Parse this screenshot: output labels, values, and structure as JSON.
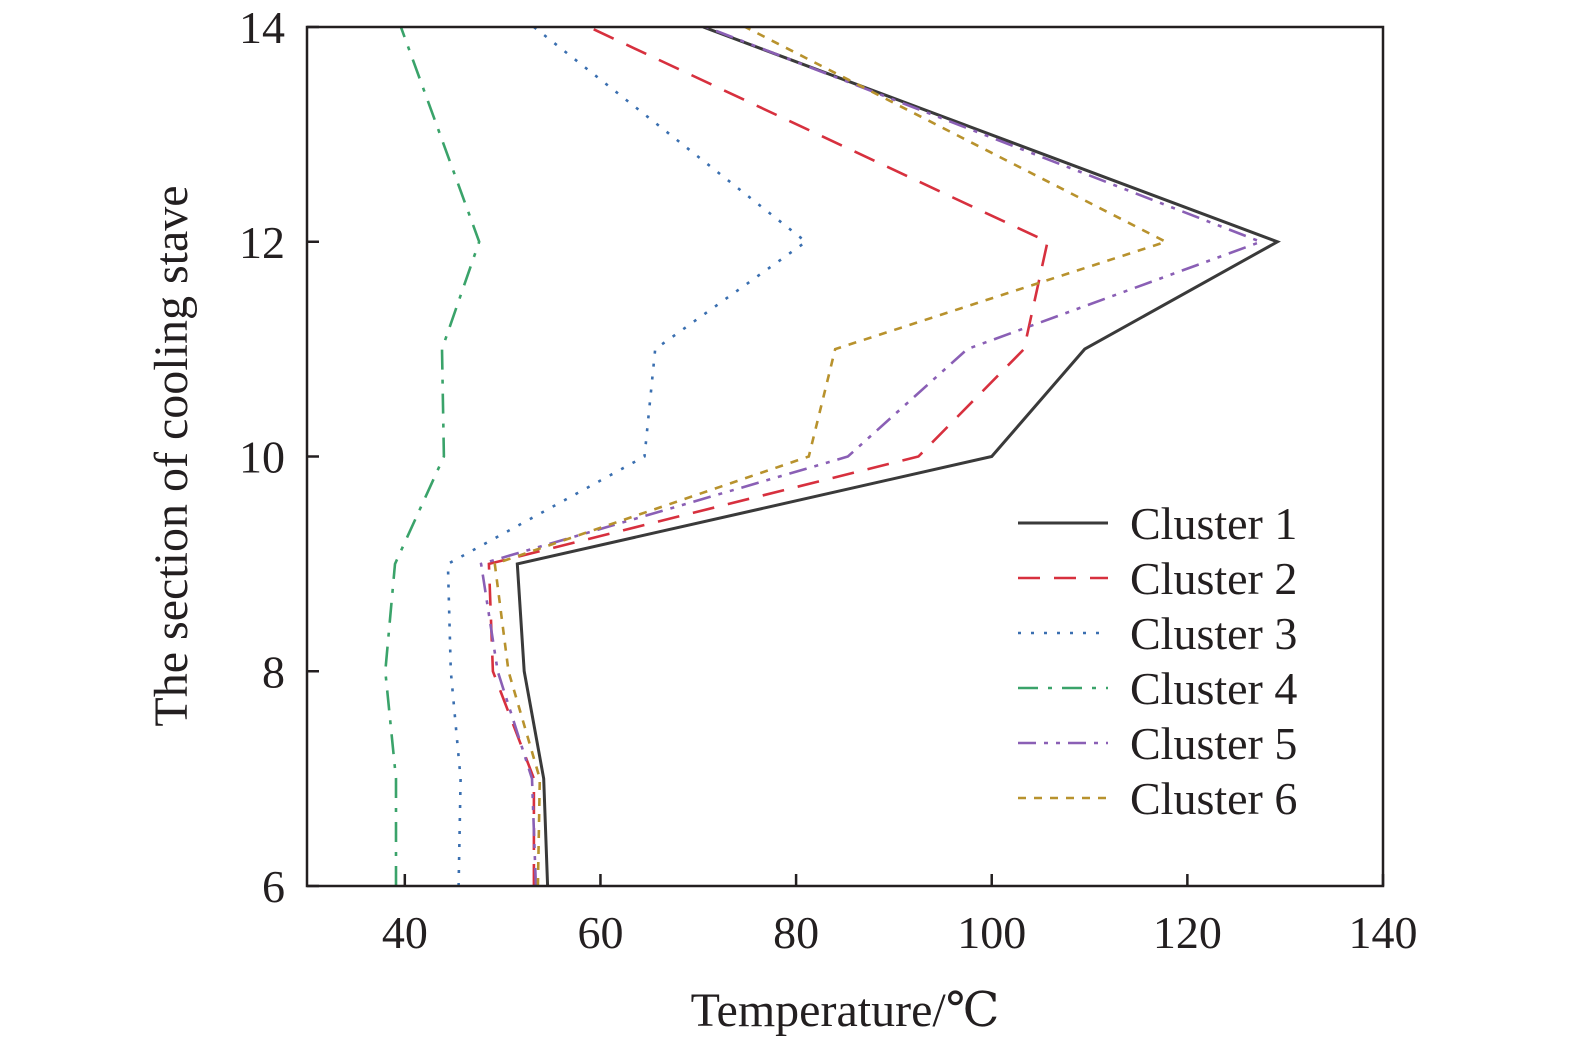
{
  "chart_data": {
    "type": "line",
    "title": "",
    "xlabel": "Temperature/℃",
    "ylabel": "The section of cooling stave",
    "xlim": [
      30,
      140
    ],
    "ylim": [
      6,
      14
    ],
    "xticks": [
      40,
      60,
      80,
      100,
      120,
      140
    ],
    "yticks": [
      6,
      8,
      10,
      12,
      14
    ],
    "grid": false,
    "legend_position": "lower-right",
    "series": [
      {
        "name": "Cluster 1",
        "color": "#3a3a3a",
        "dash": "solid",
        "points": [
          [
            54.6,
            6
          ],
          [
            54.2,
            7
          ],
          [
            52.2,
            8
          ],
          [
            51.5,
            9
          ],
          [
            100,
            10
          ],
          [
            109.5,
            11
          ],
          [
            129.2,
            12
          ],
          [
            70.5,
            14
          ]
        ]
      },
      {
        "name": "Cluster 2",
        "color": "#d7303e",
        "dash": "dashed",
        "points": [
          [
            53.2,
            6
          ],
          [
            53.2,
            7
          ],
          [
            49,
            8
          ],
          [
            48.6,
            9
          ],
          [
            92.5,
            10
          ],
          [
            103.3,
            11
          ],
          [
            105.7,
            12
          ],
          [
            58.8,
            14
          ]
        ]
      },
      {
        "name": "Cluster 3",
        "color": "#3a6fb0",
        "dash": "dotted",
        "points": [
          [
            45.5,
            6
          ],
          [
            45.7,
            7
          ],
          [
            44.7,
            8
          ],
          [
            44.4,
            9
          ],
          [
            64.5,
            10
          ],
          [
            65.6,
            11
          ],
          [
            81,
            12
          ],
          [
            53.2,
            14
          ]
        ]
      },
      {
        "name": "Cluster 4",
        "color": "#3aa36a",
        "dash": "dashdot",
        "points": [
          [
            39.1,
            6
          ],
          [
            39.1,
            7
          ],
          [
            38,
            8
          ],
          [
            39,
            9
          ],
          [
            44,
            10
          ],
          [
            43.8,
            11
          ],
          [
            47.6,
            12
          ],
          [
            39.6,
            14
          ]
        ]
      },
      {
        "name": "Cluster 5",
        "color": "#8a5fb5",
        "dash": "dashdotdot",
        "points": [
          [
            53.4,
            6
          ],
          [
            53,
            7
          ],
          [
            49.5,
            8
          ],
          [
            47.8,
            9
          ],
          [
            85.3,
            10
          ],
          [
            97.5,
            11
          ],
          [
            127.5,
            12
          ],
          [
            70.8,
            14
          ]
        ]
      },
      {
        "name": "Cluster 6",
        "color": "#b8922d",
        "dash": "shortdash",
        "points": [
          [
            53.6,
            6
          ],
          [
            53.8,
            7
          ],
          [
            50.6,
            8
          ],
          [
            49.2,
            9
          ],
          [
            81.3,
            10
          ],
          [
            84,
            11
          ],
          [
            117.8,
            12
          ],
          [
            74.8,
            14
          ]
        ]
      }
    ]
  }
}
